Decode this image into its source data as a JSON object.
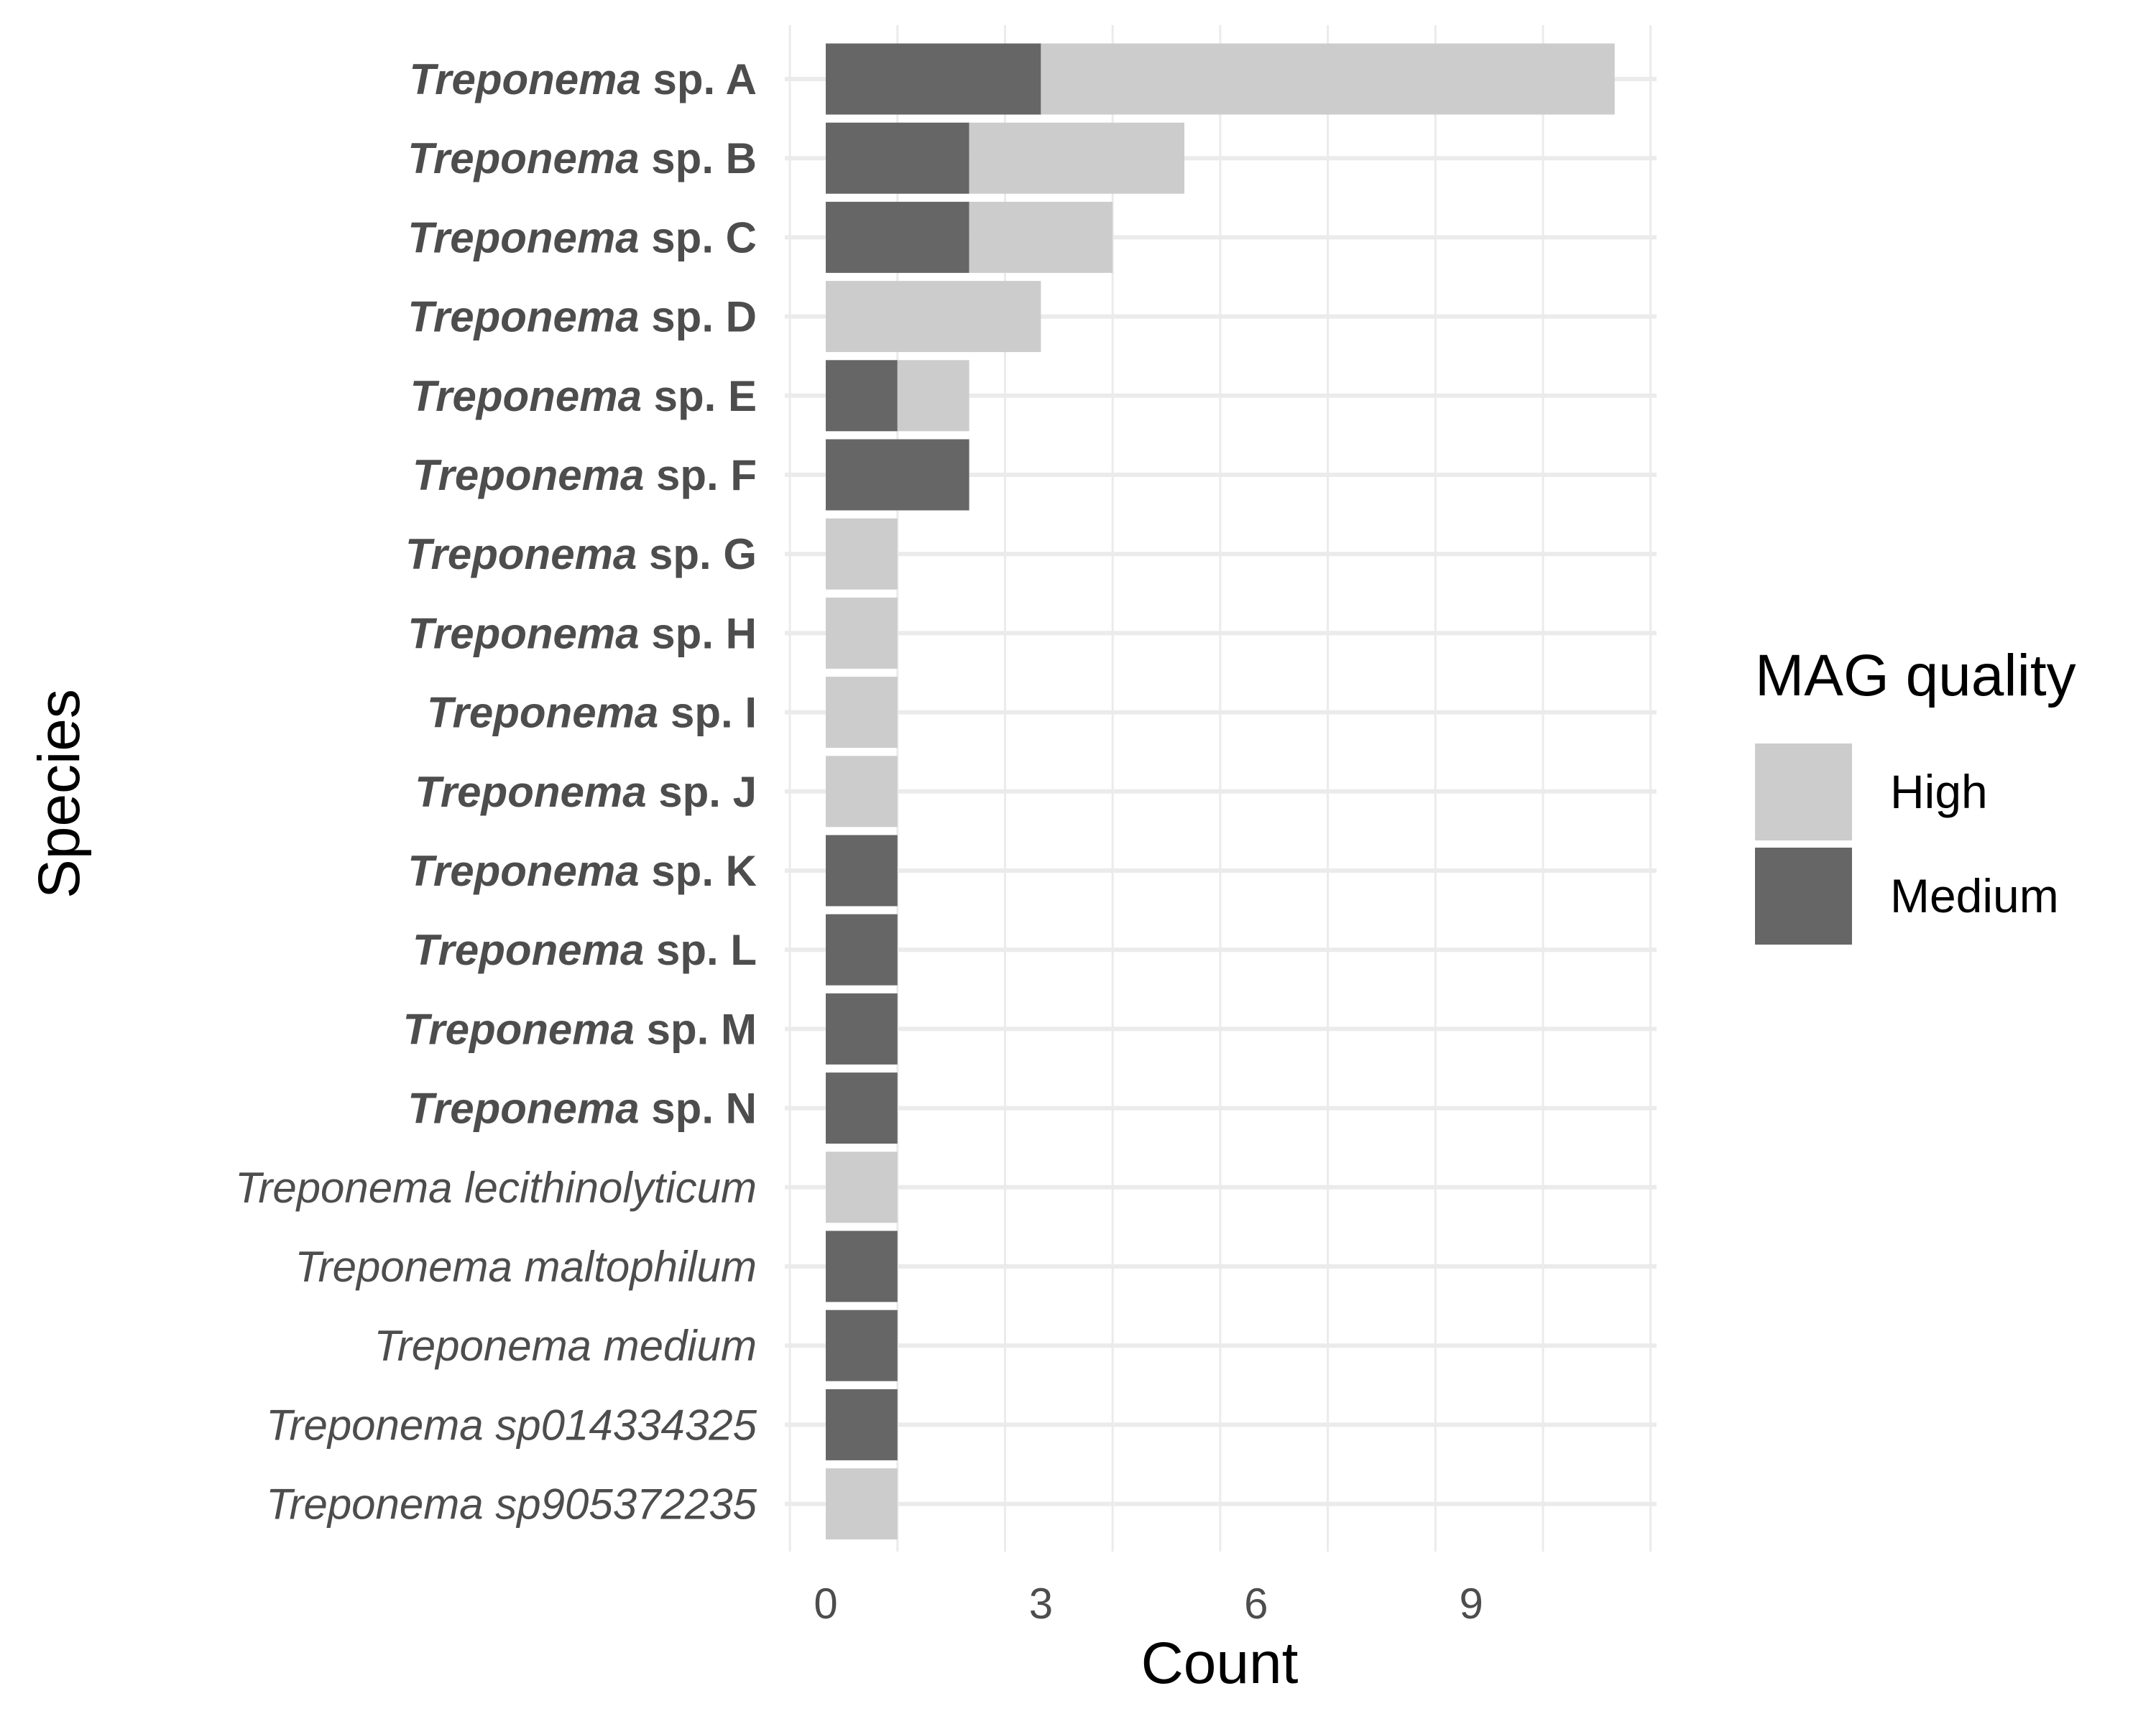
{
  "chart_data": {
    "type": "bar",
    "orientation": "horizontal",
    "stacked": true,
    "xlabel": "Count",
    "ylabel": "Species",
    "xlim": [
      0,
      11
    ],
    "xticks": [
      0,
      3,
      6,
      9
    ],
    "grid": true,
    "legend": {
      "title": "MAG quality",
      "placement": "right",
      "entries": [
        {
          "label": "High",
          "color": "#cccccc"
        },
        {
          "label": "Medium",
          "color": "#666666"
        }
      ]
    },
    "categories": [
      {
        "genus": "Treponema",
        "epithet": "sp. A",
        "bold": true
      },
      {
        "genus": "Treponema",
        "epithet": "sp. B",
        "bold": true
      },
      {
        "genus": "Treponema",
        "epithet": "sp. C",
        "bold": true
      },
      {
        "genus": "Treponema",
        "epithet": "sp. D",
        "bold": true
      },
      {
        "genus": "Treponema",
        "epithet": "sp. E",
        "bold": true
      },
      {
        "genus": "Treponema",
        "epithet": "sp. F",
        "bold": true
      },
      {
        "genus": "Treponema",
        "epithet": "sp. G",
        "bold": true
      },
      {
        "genus": "Treponema",
        "epithet": "sp. H",
        "bold": true
      },
      {
        "genus": "Treponema",
        "epithet": "sp. I",
        "bold": true
      },
      {
        "genus": "Treponema",
        "epithet": "sp. J",
        "bold": true
      },
      {
        "genus": "Treponema",
        "epithet": "sp. K",
        "bold": true
      },
      {
        "genus": "Treponema",
        "epithet": "sp. L",
        "bold": true
      },
      {
        "genus": "Treponema",
        "epithet": "sp. M",
        "bold": true
      },
      {
        "genus": "Treponema",
        "epithet": "sp. N",
        "bold": true
      },
      {
        "genus": "Treponema lecithinolyticum",
        "epithet": "",
        "bold": false
      },
      {
        "genus": "Treponema maltophilum",
        "epithet": "",
        "bold": false
      },
      {
        "genus": "Treponema medium",
        "epithet": "",
        "bold": false
      },
      {
        "genus": "Treponema sp014334325",
        "epithet": "",
        "bold": false
      },
      {
        "genus": "Treponema sp905372235",
        "epithet": "",
        "bold": false
      }
    ],
    "series": [
      {
        "name": "Medium",
        "color": "#666666",
        "values": [
          3,
          2,
          2,
          0,
          1,
          2,
          0,
          0,
          0,
          0,
          1,
          1,
          1,
          1,
          0,
          1,
          1,
          1,
          0
        ]
      },
      {
        "name": "High",
        "color": "#cccccc",
        "values": [
          8,
          3,
          2,
          3,
          1,
          0,
          1,
          1,
          1,
          1,
          0,
          0,
          0,
          0,
          1,
          0,
          0,
          0,
          1
        ]
      }
    ]
  }
}
